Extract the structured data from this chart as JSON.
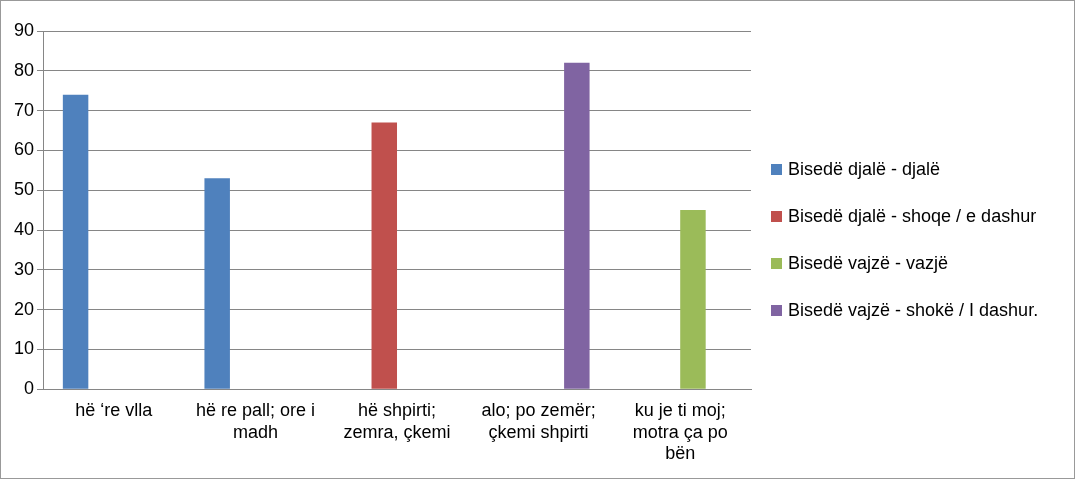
{
  "chart_data": {
    "type": "bar",
    "categories": [
      "hë ‘re vlla",
      "hë re pall; ore i madh",
      "hë shpirti; zemra, çkemi",
      "alo; po zemër; çkemi shpirti",
      "ku je ti moj; motra ça po bën"
    ],
    "series": [
      {
        "name": "Bisedë djalë - djalë",
        "color": "#4f81bd",
        "values": [
          74,
          53,
          null,
          null,
          null
        ]
      },
      {
        "name": "Bisedë djalë - shoqe / e dashur",
        "color": "#c0504d",
        "values": [
          null,
          null,
          67,
          null,
          null
        ]
      },
      {
        "name": "Bisedë vajzë - vazjë",
        "color": "#9bbb59",
        "values": [
          null,
          null,
          null,
          null,
          45
        ]
      },
      {
        "name": "Bisedë vajzë - shokë / I dashur.",
        "color": "#8064a2",
        "values": [
          null,
          null,
          null,
          82,
          null
        ]
      }
    ],
    "ylim": [
      0,
      90
    ],
    "yticks": [
      0,
      10,
      20,
      30,
      40,
      50,
      60,
      70,
      80,
      90
    ],
    "grid": "y",
    "legend": "right"
  }
}
